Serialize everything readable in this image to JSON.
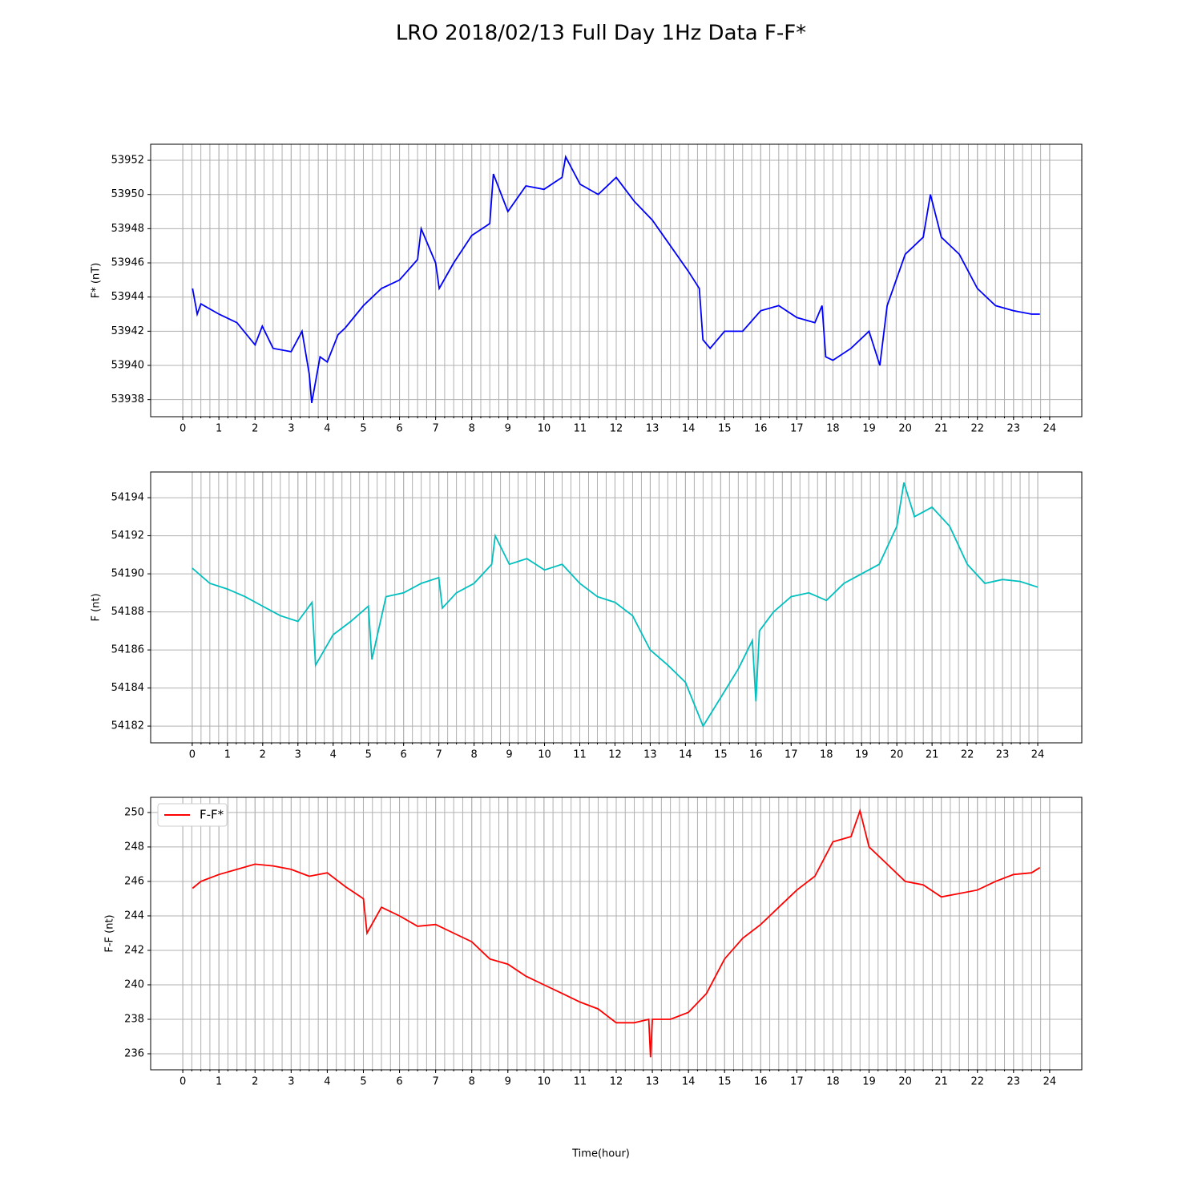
{
  "title": "LRO 2018/02/13 Full Day 1Hz Data F-F*",
  "x_label": "Time(hour)",
  "chart_data": [
    {
      "type": "line",
      "y_label": "F* (nT)",
      "color": "#0000ff",
      "grid": true,
      "xlim": [
        -0.89,
        24.89
      ],
      "ylim": [
        53937.0,
        53952.94
      ],
      "xticks": [
        0,
        1,
        2,
        3,
        4,
        5,
        6,
        7,
        8,
        9,
        10,
        11,
        12,
        13,
        14,
        15,
        16,
        17,
        18,
        19,
        20,
        21,
        22,
        23,
        24
      ],
      "xminor": 0.25,
      "yticks": [
        53938,
        53940,
        53942,
        53944,
        53946,
        53948,
        53950,
        53952
      ],
      "x": [
        0.27,
        0.4,
        0.5,
        1,
        1.5,
        2,
        2.2,
        2.5,
        3,
        3.3,
        3.5,
        3.57,
        3.8,
        4,
        4.3,
        4.5,
        5,
        5.5,
        6,
        6.5,
        6.6,
        7,
        7.1,
        7.5,
        8,
        8.5,
        8.6,
        9,
        9.5,
        10,
        10.5,
        10.6,
        11,
        11.5,
        12,
        12.5,
        13,
        13.5,
        14,
        14.3,
        14.4,
        14.6,
        15,
        15.5,
        16,
        16.5,
        17,
        17.5,
        17.7,
        17.8,
        18,
        18.5,
        19,
        19.3,
        19.5,
        20,
        20.5,
        20.7,
        21,
        21.5,
        22,
        22.5,
        23,
        23.5,
        23.73
      ],
      "values": [
        53944.5,
        53943.0,
        53943.6,
        53943.0,
        53942.5,
        53941.2,
        53942.3,
        53941.0,
        53940.8,
        53942.0,
        53939.5,
        53937.8,
        53940.5,
        53940.2,
        53941.8,
        53942.2,
        53943.5,
        53944.5,
        53945.0,
        53946.2,
        53948.0,
        53946.0,
        53944.5,
        53946.0,
        53947.6,
        53948.3,
        53951.2,
        53949.0,
        53950.5,
        53950.3,
        53951.0,
        53952.2,
        53950.6,
        53950.0,
        53951.0,
        53949.6,
        53948.5,
        53947.0,
        53945.5,
        53944.5,
        53941.5,
        53941.0,
        53942.0,
        53942.0,
        53943.2,
        53943.5,
        53942.8,
        53942.5,
        53943.5,
        53940.5,
        53940.3,
        53941.0,
        53942.0,
        53940.0,
        53943.5,
        53946.5,
        53947.5,
        53950.0,
        53947.5,
        53946.5,
        53944.5,
        53943.5,
        53943.2,
        53943.0,
        53943.0
      ]
    },
    {
      "type": "line",
      "y_label": "F (nt)",
      "color": "#00bfbf",
      "grid": true,
      "xlim": [
        -1.18,
        25.25
      ],
      "ylim": [
        54181.12,
        54195.35
      ],
      "xticks": [
        0,
        1,
        2,
        3,
        4,
        5,
        6,
        7,
        8,
        9,
        10,
        11,
        12,
        13,
        14,
        15,
        16,
        17,
        18,
        19,
        20,
        21,
        22,
        23,
        24
      ],
      "xminor": 0.25,
      "yticks": [
        54182,
        54184,
        54186,
        54188,
        54190,
        54192,
        54194
      ],
      "x": [
        0,
        0.5,
        1,
        1.5,
        2,
        2.5,
        3,
        3.4,
        3.5,
        4,
        4.5,
        5,
        5.1,
        5.5,
        6,
        6.5,
        7,
        7.1,
        7.5,
        8,
        8.5,
        8.6,
        9,
        9.5,
        10,
        10.5,
        11,
        11.5,
        12,
        12.5,
        13,
        13.5,
        14,
        14.5,
        15,
        15.5,
        15.9,
        16,
        16.1,
        16.5,
        17,
        17.5,
        18,
        18.5,
        19,
        19.5,
        20,
        20.2,
        20.5,
        21,
        21.5,
        22,
        22.5,
        23,
        23.5,
        24
      ],
      "values": [
        54190.3,
        54189.5,
        54189.2,
        54188.8,
        54188.3,
        54187.8,
        54187.5,
        54188.5,
        54185.2,
        54186.8,
        54187.5,
        54188.3,
        54185.5,
        54188.8,
        54189.0,
        54189.5,
        54189.8,
        54188.2,
        54189.0,
        54189.5,
        54190.5,
        54192.0,
        54190.5,
        54190.8,
        54190.2,
        54190.5,
        54189.5,
        54188.8,
        54188.5,
        54187.8,
        54186.0,
        54185.2,
        54184.3,
        54182.0,
        54183.5,
        54185.0,
        54186.5,
        54183.3,
        54187.0,
        54188.0,
        54188.8,
        54189.0,
        54188.6,
        54189.5,
        54190.0,
        54190.5,
        54192.5,
        54194.8,
        54193.0,
        54193.5,
        54192.5,
        54190.5,
        54189.5,
        54189.7,
        54189.6,
        54189.3
      ]
    },
    {
      "type": "line",
      "y_label": "F-F (nt)",
      "grid": true,
      "legend": "upper left",
      "xlim": [
        -0.89,
        24.89
      ],
      "ylim": [
        235.07,
        250.88
      ],
      "xticks": [
        0,
        1,
        2,
        3,
        4,
        5,
        6,
        7,
        8,
        9,
        10,
        11,
        12,
        13,
        14,
        15,
        16,
        17,
        18,
        19,
        20,
        21,
        22,
        23,
        24
      ],
      "xminor": 0.25,
      "yticks": [
        236,
        238,
        240,
        242,
        244,
        246,
        248,
        250
      ],
      "x": [
        0.27,
        0.5,
        1,
        1.5,
        2,
        2.5,
        3,
        3.5,
        4,
        4.5,
        5,
        5.1,
        5.5,
        6,
        6.5,
        7,
        7.5,
        8,
        8.5,
        9,
        9.5,
        10,
        10.5,
        11,
        11.5,
        12,
        12.5,
        12.9,
        12.95,
        13,
        13.5,
        14,
        14.5,
        15,
        15.5,
        16,
        16.5,
        17,
        17.5,
        18,
        18.5,
        18.75,
        19,
        19.5,
        20,
        20.5,
        21,
        21.5,
        22,
        22.5,
        23,
        23.5,
        23.73
      ],
      "series": [
        {
          "name": "F-F*",
          "color": "#ff0000",
          "values": [
            245.6,
            246.0,
            246.4,
            246.7,
            247.0,
            246.9,
            246.7,
            246.3,
            246.5,
            245.7,
            245.0,
            243.0,
            244.5,
            244.0,
            243.4,
            243.5,
            243.0,
            242.5,
            241.5,
            241.2,
            240.5,
            240.0,
            239.5,
            239.0,
            238.6,
            237.8,
            237.8,
            238.0,
            235.8,
            238.0,
            238.0,
            238.4,
            239.5,
            241.5,
            242.7,
            243.5,
            244.5,
            245.5,
            246.3,
            248.3,
            248.6,
            250.1,
            248.0,
            247.0,
            246.0,
            245.8,
            245.1,
            245.3,
            245.5,
            246.0,
            246.4,
            246.5,
            246.8
          ]
        }
      ]
    }
  ]
}
